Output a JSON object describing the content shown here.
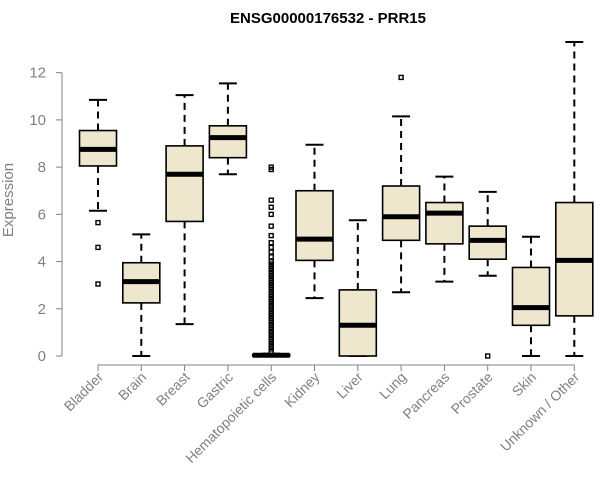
{
  "chart_data": {
    "type": "boxplot",
    "title": "ENSG00000176532 - PRR15",
    "ylabel": "Expression",
    "xlabel": "",
    "ylim": [
      0,
      13.3
    ],
    "yticks": [
      0,
      2,
      4,
      6,
      8,
      10,
      12
    ],
    "grid": false,
    "box_color": "#efe7cd",
    "categories": [
      "Bladder",
      "Brain",
      "Breast",
      "Gastric",
      "Hematopoietic cells",
      "Kidney",
      "Liver",
      "Lung",
      "Pancreas",
      "Prostate",
      "Skin",
      "Unknown / Other"
    ],
    "series": [
      {
        "category": "Bladder",
        "whisker_low": 6.15,
        "q1": 8.05,
        "median": 8.75,
        "q3": 9.55,
        "whisker_high": 10.85,
        "outliers": [
          5.65,
          4.6,
          3.05
        ]
      },
      {
        "category": "Brain",
        "whisker_low": 0.0,
        "q1": 2.25,
        "median": 3.15,
        "q3": 3.95,
        "whisker_high": 5.15,
        "outliers": []
      },
      {
        "category": "Breast",
        "whisker_low": 1.35,
        "q1": 5.7,
        "median": 7.7,
        "q3": 8.9,
        "whisker_high": 11.05,
        "outliers": []
      },
      {
        "category": "Gastric",
        "whisker_low": 7.7,
        "q1": 8.4,
        "median": 9.25,
        "q3": 9.75,
        "whisker_high": 11.55,
        "outliers": []
      },
      {
        "category": "Hematopoietic cells",
        "whisker_low": 0.0,
        "q1": 0.0,
        "median": 0.03,
        "q3": 0.06,
        "whisker_high": 0.1,
        "outliers": [
          0.2,
          0.3,
          0.4,
          0.5,
          0.6,
          0.7,
          0.8,
          0.9,
          1.0,
          1.1,
          1.2,
          1.3,
          1.4,
          1.5,
          1.6,
          1.7,
          1.8,
          1.9,
          2.0,
          2.1,
          2.2,
          2.3,
          2.4,
          2.5,
          2.6,
          2.7,
          2.8,
          2.9,
          3.0,
          3.1,
          3.2,
          3.3,
          3.4,
          3.5,
          3.6,
          3.7,
          3.8,
          3.9,
          4.0,
          4.2,
          4.4,
          4.6,
          4.8,
          5.1,
          5.5,
          6.0,
          6.3,
          6.6,
          7.9,
          8.0
        ]
      },
      {
        "category": "Kidney",
        "whisker_low": 2.45,
        "q1": 4.05,
        "median": 4.95,
        "q3": 7.0,
        "whisker_high": 8.95,
        "outliers": []
      },
      {
        "category": "Liver",
        "whisker_low": 0.0,
        "q1": 0.0,
        "median": 1.3,
        "q3": 2.8,
        "whisker_high": 5.75,
        "outliers": []
      },
      {
        "category": "Lung",
        "whisker_low": 2.7,
        "q1": 4.9,
        "median": 5.9,
        "q3": 7.2,
        "whisker_high": 10.15,
        "outliers": [
          11.8
        ]
      },
      {
        "category": "Pancreas",
        "whisker_low": 3.15,
        "q1": 4.75,
        "median": 6.05,
        "q3": 6.5,
        "whisker_high": 7.6,
        "outliers": []
      },
      {
        "category": "Prostate",
        "whisker_low": 3.4,
        "q1": 4.1,
        "median": 4.9,
        "q3": 5.5,
        "whisker_high": 6.95,
        "outliers": [
          0.0
        ]
      },
      {
        "category": "Skin",
        "whisker_low": 0.0,
        "q1": 1.3,
        "median": 2.05,
        "q3": 3.75,
        "whisker_high": 5.05,
        "outliers": []
      },
      {
        "category": "Unknown / Other",
        "whisker_low": 0.0,
        "q1": 1.7,
        "median": 4.05,
        "q3": 6.5,
        "whisker_high": 13.3,
        "outliers": []
      }
    ]
  }
}
